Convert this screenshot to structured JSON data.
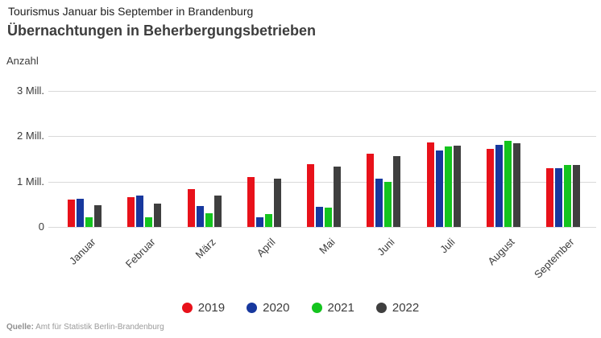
{
  "header": {
    "subtitle": "Tourismus Januar bis September in Brandenburg",
    "title": "Übernachtungen in Beherbergungsbetrieben"
  },
  "chart_data": {
    "type": "bar",
    "title": "Übernachtungen in Beherbergungsbetrieben",
    "subtitle": "Tourismus Januar bis September in Brandenburg",
    "ylabel": "Anzahl",
    "unit": "Mill.",
    "ylim": [
      0,
      3
    ],
    "yticks": [
      0,
      1,
      2,
      3
    ],
    "ytick_labels": [
      "0",
      "1 Mill.",
      "2 Mill.",
      "3 Mill."
    ],
    "grid": true,
    "legend_position": "bottom",
    "categories": [
      "Januar",
      "Februar",
      "März",
      "April",
      "Mai",
      "Juni",
      "Juli",
      "August",
      "September"
    ],
    "series": [
      {
        "name": "2019",
        "color": "#e8111a",
        "values": [
          0.61,
          0.66,
          0.84,
          1.11,
          1.39,
          1.61,
          1.86,
          1.73,
          1.3
        ]
      },
      {
        "name": "2020",
        "color": "#17389e",
        "values": [
          0.62,
          0.7,
          0.46,
          0.22,
          0.45,
          1.06,
          1.68,
          1.82,
          1.29
        ]
      },
      {
        "name": "2021",
        "color": "#14c41e",
        "values": [
          0.22,
          0.21,
          0.3,
          0.28,
          0.43,
          0.99,
          1.77,
          1.9,
          1.36
        ]
      },
      {
        "name": "2022",
        "color": "#3f3f3f",
        "values": [
          0.48,
          0.52,
          0.7,
          1.06,
          1.33,
          1.57,
          1.8,
          1.84,
          1.36
        ]
      }
    ]
  },
  "footer": {
    "source_label": "Quelle:",
    "source_text": "Amt für Statistik Berlin-Brandenburg"
  }
}
